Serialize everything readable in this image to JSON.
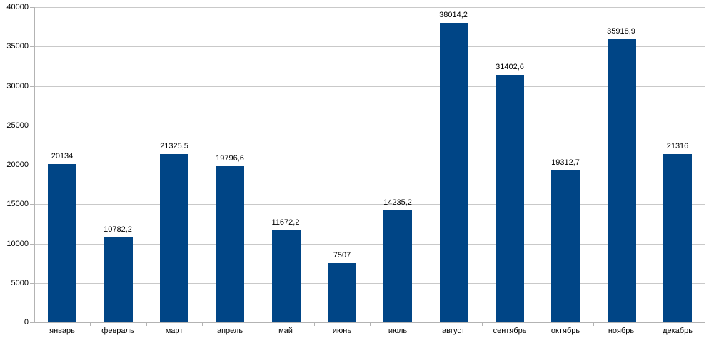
{
  "chart_data": {
    "type": "bar",
    "title": "",
    "categories": [
      "январь",
      "февраль",
      "март",
      "апрель",
      "май",
      "июнь",
      "июль",
      "август",
      "сентябрь",
      "октябрь",
      "ноябрь",
      "декабрь"
    ],
    "values": [
      20134,
      10782.2,
      21325.5,
      19796.6,
      11672.2,
      7507,
      14235.2,
      38014.2,
      31402.6,
      19312.7,
      35918.9,
      21316
    ],
    "value_labels": [
      "20134",
      "10782,2",
      "21325,5",
      "19796,6",
      "11672,2",
      "7507",
      "14235,2",
      "38014,2",
      "31402,6",
      "19312,7",
      "35918,9",
      "21316"
    ],
    "xlabel": "",
    "ylabel": "",
    "ylim": [
      0,
      40000
    ],
    "ytick_step": 5000,
    "ytick_labels": [
      "0",
      "5000",
      "10000",
      "15000",
      "20000",
      "25000",
      "30000",
      "35000",
      "40000"
    ],
    "grid": "horizontal-only",
    "legend": "none",
    "colors": {
      "bar": "#004586",
      "grid_line": "#c9c9c9",
      "axis_line": "#b3b3b3",
      "text": "#000000",
      "background": "#ffffff"
    }
  }
}
